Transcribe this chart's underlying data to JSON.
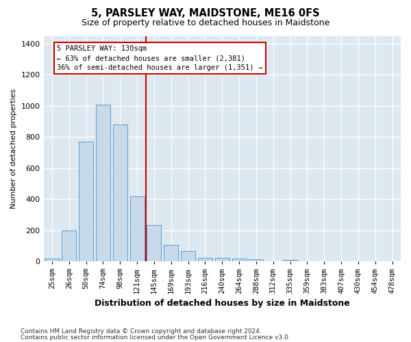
{
  "title": "5, PARSLEY WAY, MAIDSTONE, ME16 0FS",
  "subtitle": "Size of property relative to detached houses in Maidstone",
  "xlabel": "Distribution of detached houses by size in Maidstone",
  "ylabel": "Number of detached properties",
  "categories": [
    "25sqm",
    "26sqm",
    "50sqm",
    "74sqm",
    "98sqm",
    "121sqm",
    "145sqm",
    "169sqm",
    "193sqm",
    "216sqm",
    "240sqm",
    "264sqm",
    "288sqm",
    "312sqm",
    "335sqm",
    "359sqm",
    "383sqm",
    "407sqm",
    "430sqm",
    "454sqm",
    "478sqm"
  ],
  "values": [
    20,
    200,
    770,
    1010,
    880,
    420,
    235,
    107,
    65,
    22,
    22,
    20,
    12,
    0,
    10,
    0,
    0,
    0,
    0,
    0,
    0
  ],
  "bar_color": "#c8daea",
  "bar_edge_color": "#5b9bd5",
  "annotation_label": "5 PARSLEY WAY: 130sqm",
  "annotation_line1": "← 63% of detached houses are smaller (2,381)",
  "annotation_line2": "36% of semi-detached houses are larger (1,351) →",
  "annotation_box_color": "#ffffff",
  "annotation_box_edge": "#cc0000",
  "vline_color": "#cc0000",
  "vline_x": 5.5,
  "ylim": [
    0,
    1450
  ],
  "yticks": [
    0,
    200,
    400,
    600,
    800,
    1000,
    1200,
    1400
  ],
  "footer1": "Contains HM Land Registry data © Crown copyright and database right 2024.",
  "footer2": "Contains public sector information licensed under the Open Government Licence v3.0.",
  "bg_color": "#ffffff",
  "plot_bg_color": "#dde8f0"
}
